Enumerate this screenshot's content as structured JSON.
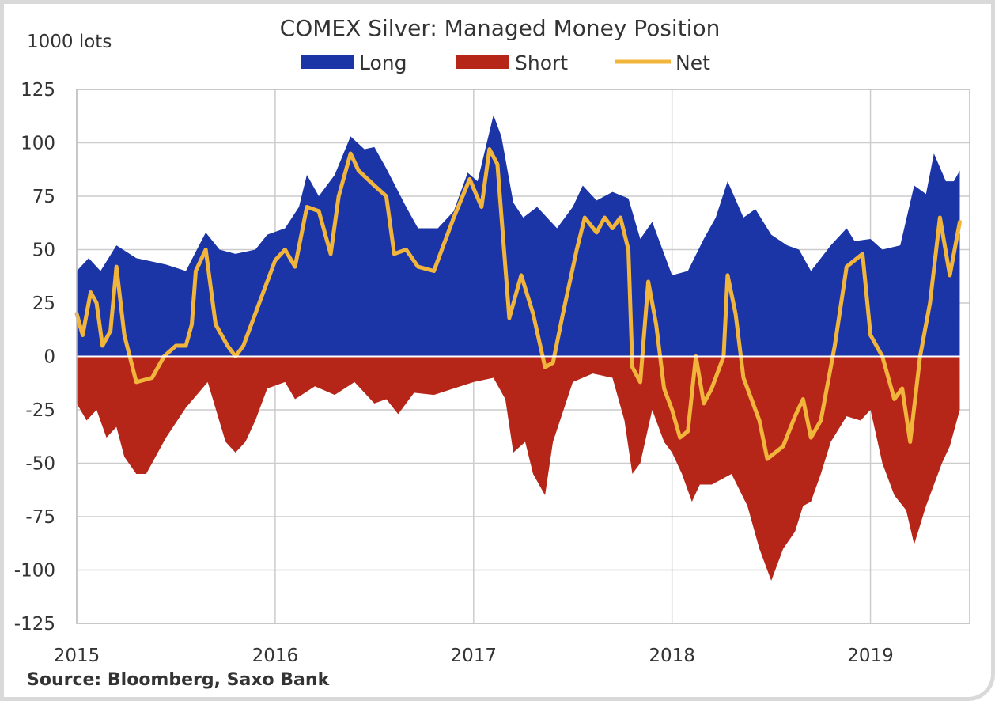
{
  "source": "Source: Bloomberg, Saxo Bank",
  "chart_data": {
    "type": "area",
    "title": "COMEX Silver: Managed Money Position",
    "ylabel": "1000 lots",
    "xlabel": "",
    "ylim": [
      -125,
      125
    ],
    "yticks": [
      125,
      100,
      75,
      50,
      25,
      0,
      -25,
      -50,
      -75,
      -100,
      -125
    ],
    "xlim": [
      2015.0,
      2019.5
    ],
    "xticks": [
      2015,
      2016,
      2017,
      2018,
      2019
    ],
    "grid": true,
    "legend_position": "top",
    "colors": {
      "long": "#1b34a6",
      "short": "#b52518",
      "net": "#f2b53b",
      "grid": "#cccccc"
    },
    "series": [
      {
        "name": "Long",
        "kind": "area",
        "points": [
          [
            2015.0,
            40
          ],
          [
            2015.06,
            46
          ],
          [
            2015.12,
            40
          ],
          [
            2015.2,
            52
          ],
          [
            2015.3,
            46
          ],
          [
            2015.45,
            43
          ],
          [
            2015.55,
            40
          ],
          [
            2015.65,
            58
          ],
          [
            2015.72,
            50
          ],
          [
            2015.8,
            48
          ],
          [
            2015.9,
            50
          ],
          [
            2015.96,
            57
          ],
          [
            2016.05,
            60
          ],
          [
            2016.12,
            70
          ],
          [
            2016.16,
            85
          ],
          [
            2016.22,
            75
          ],
          [
            2016.3,
            85
          ],
          [
            2016.38,
            103
          ],
          [
            2016.45,
            97
          ],
          [
            2016.5,
            98
          ],
          [
            2016.56,
            88
          ],
          [
            2016.66,
            70
          ],
          [
            2016.72,
            60
          ],
          [
            2016.82,
            60
          ],
          [
            2016.9,
            68
          ],
          [
            2016.97,
            86
          ],
          [
            2017.02,
            82
          ],
          [
            2017.1,
            113
          ],
          [
            2017.14,
            103
          ],
          [
            2017.2,
            72
          ],
          [
            2017.25,
            65
          ],
          [
            2017.32,
            70
          ],
          [
            2017.42,
            60
          ],
          [
            2017.5,
            70
          ],
          [
            2017.55,
            80
          ],
          [
            2017.62,
            73
          ],
          [
            2017.7,
            77
          ],
          [
            2017.78,
            74
          ],
          [
            2017.84,
            55
          ],
          [
            2017.9,
            63
          ],
          [
            2018.0,
            38
          ],
          [
            2018.08,
            40
          ],
          [
            2018.16,
            55
          ],
          [
            2018.22,
            65
          ],
          [
            2018.28,
            82
          ],
          [
            2018.36,
            65
          ],
          [
            2018.42,
            69
          ],
          [
            2018.5,
            57
          ],
          [
            2018.58,
            52
          ],
          [
            2018.64,
            50
          ],
          [
            2018.7,
            40
          ],
          [
            2018.8,
            52
          ],
          [
            2018.88,
            60
          ],
          [
            2018.92,
            54
          ],
          [
            2019.0,
            55
          ],
          [
            2019.06,
            50
          ],
          [
            2019.15,
            52
          ],
          [
            2019.22,
            80
          ],
          [
            2019.28,
            76
          ],
          [
            2019.32,
            95
          ],
          [
            2019.38,
            82
          ],
          [
            2019.42,
            82
          ],
          [
            2019.45,
            87
          ]
        ]
      },
      {
        "name": "Short",
        "kind": "area",
        "points": [
          [
            2015.0,
            -22
          ],
          [
            2015.05,
            -30
          ],
          [
            2015.1,
            -25
          ],
          [
            2015.15,
            -38
          ],
          [
            2015.2,
            -33
          ],
          [
            2015.24,
            -47
          ],
          [
            2015.3,
            -55
          ],
          [
            2015.35,
            -55
          ],
          [
            2015.45,
            -38
          ],
          [
            2015.55,
            -24
          ],
          [
            2015.66,
            -12
          ],
          [
            2015.75,
            -40
          ],
          [
            2015.8,
            -45
          ],
          [
            2015.85,
            -40
          ],
          [
            2015.9,
            -30
          ],
          [
            2015.96,
            -15
          ],
          [
            2016.05,
            -12
          ],
          [
            2016.1,
            -20
          ],
          [
            2016.2,
            -14
          ],
          [
            2016.3,
            -18
          ],
          [
            2016.4,
            -12
          ],
          [
            2016.5,
            -22
          ],
          [
            2016.56,
            -20
          ],
          [
            2016.62,
            -27
          ],
          [
            2016.7,
            -17
          ],
          [
            2016.8,
            -18
          ],
          [
            2016.9,
            -15
          ],
          [
            2017.0,
            -12
          ],
          [
            2017.1,
            -10
          ],
          [
            2017.16,
            -20
          ],
          [
            2017.2,
            -45
          ],
          [
            2017.26,
            -40
          ],
          [
            2017.3,
            -55
          ],
          [
            2017.36,
            -65
          ],
          [
            2017.4,
            -40
          ],
          [
            2017.5,
            -12
          ],
          [
            2017.6,
            -8
          ],
          [
            2017.7,
            -10
          ],
          [
            2017.76,
            -30
          ],
          [
            2017.8,
            -55
          ],
          [
            2017.84,
            -50
          ],
          [
            2017.9,
            -25
          ],
          [
            2017.96,
            -40
          ],
          [
            2018.0,
            -45
          ],
          [
            2018.05,
            -55
          ],
          [
            2018.1,
            -68
          ],
          [
            2018.14,
            -60
          ],
          [
            2018.2,
            -60
          ],
          [
            2018.3,
            -55
          ],
          [
            2018.38,
            -70
          ],
          [
            2018.44,
            -90
          ],
          [
            2018.5,
            -105
          ],
          [
            2018.56,
            -90
          ],
          [
            2018.62,
            -82
          ],
          [
            2018.66,
            -70
          ],
          [
            2018.7,
            -68
          ],
          [
            2018.75,
            -55
          ],
          [
            2018.8,
            -40
          ],
          [
            2018.88,
            -28
          ],
          [
            2018.95,
            -30
          ],
          [
            2019.0,
            -25
          ],
          [
            2019.06,
            -50
          ],
          [
            2019.12,
            -65
          ],
          [
            2019.18,
            -72
          ],
          [
            2019.22,
            -88
          ],
          [
            2019.28,
            -70
          ],
          [
            2019.36,
            -50
          ],
          [
            2019.4,
            -42
          ],
          [
            2019.45,
            -25
          ]
        ]
      },
      {
        "name": "Net",
        "kind": "line",
        "points": [
          [
            2015.0,
            20
          ],
          [
            2015.03,
            10
          ],
          [
            2015.07,
            30
          ],
          [
            2015.1,
            25
          ],
          [
            2015.13,
            5
          ],
          [
            2015.17,
            12
          ],
          [
            2015.2,
            42
          ],
          [
            2015.24,
            10
          ],
          [
            2015.3,
            -12
          ],
          [
            2015.38,
            -10
          ],
          [
            2015.44,
            0
          ],
          [
            2015.5,
            5
          ],
          [
            2015.55,
            5
          ],
          [
            2015.58,
            15
          ],
          [
            2015.6,
            40
          ],
          [
            2015.65,
            50
          ],
          [
            2015.7,
            15
          ],
          [
            2015.76,
            5
          ],
          [
            2015.8,
            0
          ],
          [
            2015.84,
            5
          ],
          [
            2015.92,
            25
          ],
          [
            2016.0,
            45
          ],
          [
            2016.05,
            50
          ],
          [
            2016.1,
            42
          ],
          [
            2016.16,
            70
          ],
          [
            2016.22,
            68
          ],
          [
            2016.28,
            48
          ],
          [
            2016.32,
            75
          ],
          [
            2016.38,
            95
          ],
          [
            2016.42,
            87
          ],
          [
            2016.5,
            80
          ],
          [
            2016.56,
            75
          ],
          [
            2016.6,
            48
          ],
          [
            2016.66,
            50
          ],
          [
            2016.72,
            42
          ],
          [
            2016.8,
            40
          ],
          [
            2016.9,
            65
          ],
          [
            2016.98,
            83
          ],
          [
            2017.04,
            70
          ],
          [
            2017.08,
            97
          ],
          [
            2017.12,
            90
          ],
          [
            2017.18,
            18
          ],
          [
            2017.24,
            38
          ],
          [
            2017.3,
            20
          ],
          [
            2017.36,
            -5
          ],
          [
            2017.4,
            -3
          ],
          [
            2017.45,
            20
          ],
          [
            2017.52,
            50
          ],
          [
            2017.56,
            65
          ],
          [
            2017.62,
            58
          ],
          [
            2017.66,
            65
          ],
          [
            2017.7,
            60
          ],
          [
            2017.74,
            65
          ],
          [
            2017.78,
            50
          ],
          [
            2017.8,
            -5
          ],
          [
            2017.84,
            -12
          ],
          [
            2017.88,
            35
          ],
          [
            2017.92,
            15
          ],
          [
            2017.96,
            -15
          ],
          [
            2018.0,
            -25
          ],
          [
            2018.04,
            -38
          ],
          [
            2018.08,
            -35
          ],
          [
            2018.12,
            0
          ],
          [
            2018.16,
            -22
          ],
          [
            2018.2,
            -15
          ],
          [
            2018.26,
            0
          ],
          [
            2018.28,
            38
          ],
          [
            2018.32,
            20
          ],
          [
            2018.36,
            -10
          ],
          [
            2018.44,
            -30
          ],
          [
            2018.48,
            -48
          ],
          [
            2018.56,
            -42
          ],
          [
            2018.62,
            -28
          ],
          [
            2018.66,
            -20
          ],
          [
            2018.7,
            -38
          ],
          [
            2018.75,
            -30
          ],
          [
            2018.82,
            5
          ],
          [
            2018.88,
            42
          ],
          [
            2018.92,
            45
          ],
          [
            2018.96,
            48
          ],
          [
            2019.0,
            10
          ],
          [
            2019.06,
            0
          ],
          [
            2019.12,
            -20
          ],
          [
            2019.16,
            -15
          ],
          [
            2019.2,
            -40
          ],
          [
            2019.25,
            0
          ],
          [
            2019.3,
            25
          ],
          [
            2019.35,
            65
          ],
          [
            2019.4,
            38
          ],
          [
            2019.45,
            63
          ]
        ]
      }
    ]
  }
}
